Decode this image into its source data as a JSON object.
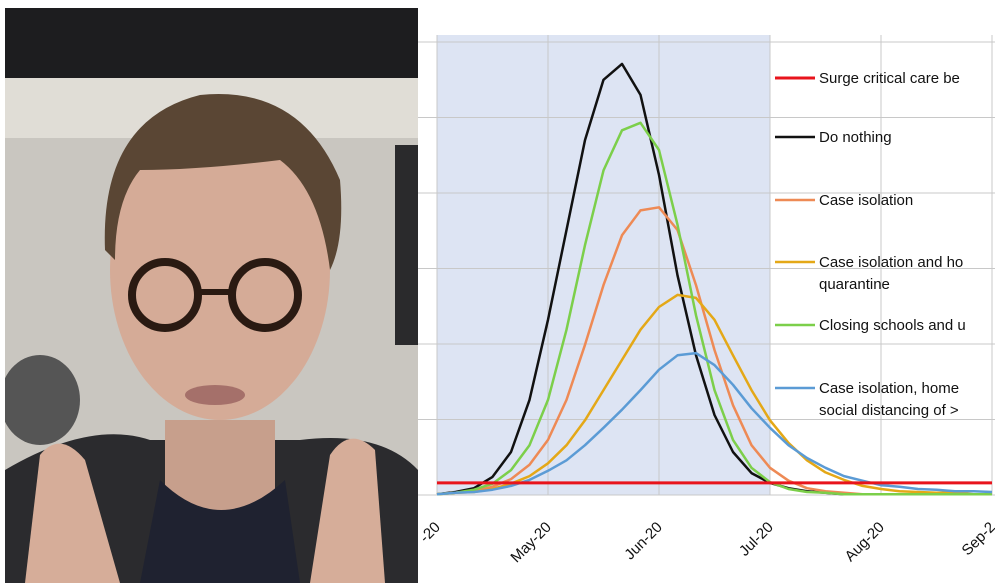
{
  "chart_data": {
    "type": "line",
    "categories": [
      "-20",
      null,
      null,
      null,
      null,
      null,
      "May-20",
      null,
      null,
      null,
      null,
      null,
      "Jun-20",
      null,
      null,
      null,
      null,
      null,
      "Jul-20",
      null,
      null,
      null,
      null,
      null,
      "Aug-20",
      null,
      null,
      null,
      null,
      null,
      "Sep-2"
    ],
    "ylim": [
      0,
      6
    ],
    "yticks": [
      0,
      1,
      2,
      3,
      4,
      5,
      6
    ],
    "grid": true,
    "series": [
      {
        "name": "Surge critical care be",
        "color": "#e8141c",
        "values": [
          0.16,
          0.16,
          0.16,
          0.16,
          0.16,
          0.16,
          0.16,
          0.16,
          0.16,
          0.16,
          0.16,
          0.16,
          0.16,
          0.16,
          0.16,
          0.16,
          0.16,
          0.16,
          0.16,
          0.16,
          0.16,
          0.16,
          0.16,
          0.16,
          0.16,
          0.16,
          0.16,
          0.16,
          0.16,
          0.16,
          0.16
        ]
      },
      {
        "name": "Do nothing",
        "color": "#111111",
        "values": [
          0.01,
          0.04,
          0.09,
          0.24,
          0.57,
          1.26,
          2.32,
          3.51,
          4.7,
          5.5,
          5.71,
          5.3,
          4.24,
          2.91,
          1.85,
          1.06,
          0.57,
          0.29,
          0.16,
          0.09,
          0.05,
          0.03,
          0.01,
          0.01,
          0.01,
          0.01,
          0.01,
          0.01,
          0.01,
          0.01,
          0.01
        ]
      },
      {
        "name": "Case isolation",
        "color": "#ee8a55",
        "values": [
          0.01,
          0.03,
          0.05,
          0.11,
          0.21,
          0.4,
          0.73,
          1.26,
          1.99,
          2.78,
          3.44,
          3.77,
          3.81,
          3.51,
          2.78,
          1.92,
          1.19,
          0.66,
          0.36,
          0.19,
          0.09,
          0.05,
          0.03,
          0.01,
          0.01,
          0.01,
          0.01,
          0.01,
          0.01,
          0.01,
          0.01
        ]
      },
      {
        "name": "Case isolation and ho\nquarantine",
        "color": "#e4a817",
        "values": [
          0.01,
          0.03,
          0.04,
          0.08,
          0.15,
          0.25,
          0.42,
          0.66,
          0.99,
          1.39,
          1.79,
          2.19,
          2.49,
          2.65,
          2.61,
          2.32,
          1.85,
          1.39,
          0.99,
          0.69,
          0.46,
          0.3,
          0.2,
          0.12,
          0.08,
          0.05,
          0.04,
          0.03,
          0.03,
          0.01,
          0.01
        ]
      },
      {
        "name": "Closing schools and u",
        "color": "#7ccf4a",
        "values": [
          0.01,
          0.03,
          0.07,
          0.15,
          0.33,
          0.66,
          1.26,
          2.19,
          3.31,
          4.3,
          4.83,
          4.93,
          4.57,
          3.58,
          2.38,
          1.39,
          0.73,
          0.36,
          0.17,
          0.08,
          0.04,
          0.03,
          0.01,
          0.01,
          0.01,
          0.01,
          0.01,
          0.01,
          0.01,
          0.01,
          0.01
        ]
      },
      {
        "name": "Case isolation, home\nsocial distancing of >",
        "color": "#5b9bd5",
        "values": [
          0.01,
          0.03,
          0.04,
          0.07,
          0.12,
          0.2,
          0.32,
          0.46,
          0.66,
          0.89,
          1.13,
          1.39,
          1.66,
          1.85,
          1.88,
          1.72,
          1.46,
          1.15,
          0.89,
          0.66,
          0.49,
          0.36,
          0.25,
          0.19,
          0.13,
          0.11,
          0.08,
          0.07,
          0.05,
          0.05,
          0.04
        ]
      }
    ]
  }
}
